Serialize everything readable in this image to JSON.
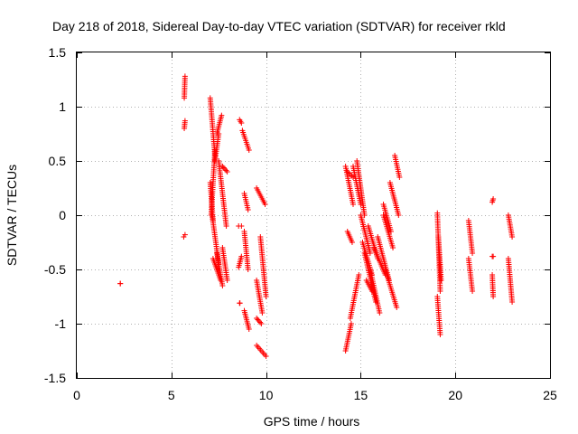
{
  "chart_data": {
    "type": "scatter",
    "title": "Day 218 of 2018, Sidereal Day-to-day VTEC variation (SDTVAR) for receiver rkld",
    "xlabel": "GPS time / hours",
    "ylabel": "SDTVAR / TECUs",
    "xlim": [
      0,
      25
    ],
    "ylim": [
      -1.5,
      1.5
    ],
    "xticks": [
      "0",
      "5",
      "10",
      "15",
      "20",
      "25"
    ],
    "yticks": [
      "-1.5",
      "-1",
      "-0.5",
      "0",
      "0.5",
      "1",
      "1.5"
    ],
    "grid": true,
    "marker": "plus",
    "color": "#ff0000",
    "series": [
      {
        "segments": [
          {
            "x": [
              2.3,
              2.3
            ],
            "y": [
              -0.63,
              -0.63
            ]
          },
          {
            "x": [
              5.65,
              5.72
            ],
            "y": [
              -0.2,
              -0.18
            ]
          },
          {
            "x": [
              5.68,
              5.72
            ],
            "y": [
              0.8,
              0.87
            ]
          },
          {
            "x": [
              5.68,
              5.72
            ],
            "y": [
              1.08,
              1.28
            ]
          },
          {
            "x": [
              7.05,
              7.3
            ],
            "y": [
              1.08,
              0.55
            ]
          },
          {
            "x": [
              7.05,
              7.2
            ],
            "y": [
              0.3,
              -0.05
            ]
          },
          {
            "x": [
              7.1,
              7.3
            ],
            "y": [
              0.0,
              0.6
            ]
          },
          {
            "x": [
              7.3,
              7.5
            ],
            "y": [
              0.5,
              0.75
            ]
          },
          {
            "x": [
              7.4,
              7.65
            ],
            "y": [
              0.75,
              0.92
            ]
          },
          {
            "x": [
              7.15,
              7.5
            ],
            "y": [
              0.0,
              -0.45
            ]
          },
          {
            "x": [
              7.4,
              7.7
            ],
            "y": [
              -0.35,
              -0.65
            ]
          },
          {
            "x": [
              7.5,
              7.9
            ],
            "y": [
              0.5,
              -0.1
            ]
          },
          {
            "x": [
              7.7,
              7.95
            ],
            "y": [
              0.45,
              0.4
            ]
          },
          {
            "x": [
              7.7,
              7.95
            ],
            "y": [
              -0.3,
              -0.6
            ]
          },
          {
            "x": [
              7.2,
              7.6
            ],
            "y": [
              -0.4,
              -0.6
            ]
          },
          {
            "x": [
              8.6,
              8.7
            ],
            "y": [
              0.88,
              0.85
            ]
          },
          {
            "x": [
              8.75,
              9.1
            ],
            "y": [
              0.78,
              0.6
            ]
          },
          {
            "x": [
              8.55,
              8.7
            ],
            "y": [
              -0.1,
              -0.1
            ]
          },
          {
            "x": [
              8.55,
              8.7
            ],
            "y": [
              -0.48,
              -0.38
            ]
          },
          {
            "x": [
              8.6,
              8.62
            ],
            "y": [
              -0.81,
              -0.81
            ]
          },
          {
            "x": [
              8.85,
              9.05
            ],
            "y": [
              0.2,
              0.05
            ]
          },
          {
            "x": [
              8.85,
              9.05
            ],
            "y": [
              -0.15,
              -0.5
            ]
          },
          {
            "x": [
              8.85,
              9.1
            ],
            "y": [
              -0.88,
              -1.05
            ]
          },
          {
            "x": [
              9.5,
              9.95
            ],
            "y": [
              0.25,
              0.1
            ]
          },
          {
            "x": [
              9.5,
              9.8
            ],
            "y": [
              -0.6,
              -0.9
            ]
          },
          {
            "x": [
              9.5,
              9.75
            ],
            "y": [
              -0.95,
              -1.0
            ]
          },
          {
            "x": [
              9.5,
              10.0
            ],
            "y": [
              -1.2,
              -1.3
            ]
          },
          {
            "x": [
              9.7,
              10.0
            ],
            "y": [
              -0.2,
              -0.75
            ]
          },
          {
            "x": [
              14.2,
              14.6
            ],
            "y": [
              0.45,
              0.1
            ]
          },
          {
            "x": [
              14.3,
              14.6
            ],
            "y": [
              0.4,
              0.35
            ]
          },
          {
            "x": [
              14.3,
              14.55
            ],
            "y": [
              -0.15,
              -0.25
            ]
          },
          {
            "x": [
              14.2,
              14.5
            ],
            "y": [
              -1.25,
              -1.0
            ]
          },
          {
            "x": [
              14.45,
              14.9
            ],
            "y": [
              -0.95,
              -0.55
            ]
          },
          {
            "x": [
              14.6,
              15.0
            ],
            "y": [
              0.45,
              0.1
            ]
          },
          {
            "x": [
              14.8,
              15.2
            ],
            "y": [
              0.5,
              0.0
            ]
          },
          {
            "x": [
              15.0,
              15.5
            ],
            "y": [
              0.0,
              -0.35
            ]
          },
          {
            "x": [
              15.1,
              15.6
            ],
            "y": [
              -0.25,
              -0.55
            ]
          },
          {
            "x": [
              15.2,
              15.8
            ],
            "y": [
              -0.35,
              -0.8
            ]
          },
          {
            "x": [
              15.5,
              16.0
            ],
            "y": [
              -0.5,
              -0.9
            ]
          },
          {
            "x": [
              15.4,
              15.9
            ],
            "y": [
              -0.1,
              -0.4
            ]
          },
          {
            "x": [
              15.7,
              16.3
            ],
            "y": [
              -0.3,
              -0.55
            ]
          },
          {
            "x": [
              15.9,
              16.5
            ],
            "y": [
              -0.2,
              -0.6
            ]
          },
          {
            "x": [
              16.2,
              16.7
            ],
            "y": [
              0.0,
              -0.3
            ]
          },
          {
            "x": [
              16.3,
              16.9
            ],
            "y": [
              -0.5,
              -0.85
            ]
          },
          {
            "x": [
              16.55,
              17.0
            ],
            "y": [
              0.3,
              0.0
            ]
          },
          {
            "x": [
              16.8,
              17.05
            ],
            "y": [
              0.55,
              0.35
            ]
          },
          {
            "x": [
              16.2,
              16.6
            ],
            "y": [
              0.1,
              -0.15
            ]
          },
          {
            "x": [
              15.3,
              15.6
            ],
            "y": [
              -0.6,
              -0.7
            ]
          },
          {
            "x": [
              19.05,
              19.2
            ],
            "y": [
              0.02,
              -0.7
            ]
          },
          {
            "x": [
              19.05,
              19.2
            ],
            "y": [
              -0.75,
              -1.1
            ]
          },
          {
            "x": [
              19.1,
              19.25
            ],
            "y": [
              -0.2,
              -0.6
            ]
          },
          {
            "x": [
              20.7,
              20.9
            ],
            "y": [
              -0.05,
              -0.35
            ]
          },
          {
            "x": [
              20.7,
              20.9
            ],
            "y": [
              -0.4,
              -0.7
            ]
          },
          {
            "x": [
              21.95,
              22.0
            ],
            "y": [
              0.12,
              0.15
            ]
          },
          {
            "x": [
              21.95,
              22.0
            ],
            "y": [
              -0.38,
              -0.38
            ]
          },
          {
            "x": [
              21.95,
              22.0
            ],
            "y": [
              -0.55,
              -0.75
            ]
          },
          {
            "x": [
              22.8,
              23.0
            ],
            "y": [
              0.0,
              -0.2
            ]
          },
          {
            "x": [
              22.8,
              23.0
            ],
            "y": [
              -0.4,
              -0.8
            ]
          }
        ]
      }
    ]
  }
}
